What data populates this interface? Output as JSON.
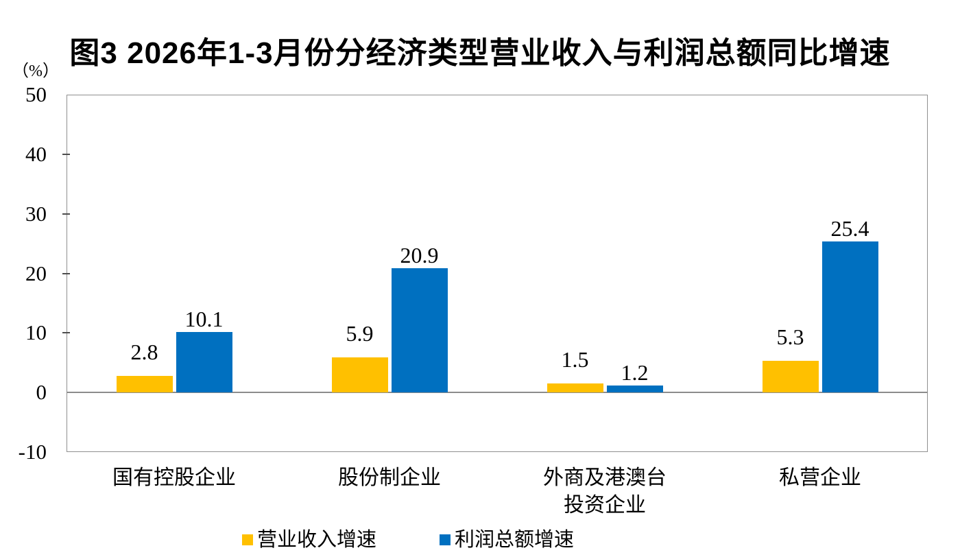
{
  "title": "图3  2026年1-3月份分经济类型营业收入与利润总额同比增速",
  "unit_label": "（%）",
  "colors": {
    "revenue_series": "#FFC000",
    "profit_series": "#0070C0",
    "plot_border": "#8f8f8f",
    "zero_axis": "#8c8c8c",
    "tick_mark": "#4d4d4d",
    "text": "#000000"
  },
  "chart_data": {
    "type": "bar",
    "title": "图3  2026年1-3月份分经济类型营业收入与利润总额同比增速",
    "ylabel": "（%）",
    "categories": [
      "国有控股企业",
      "股份制企业",
      "外商及港澳台投资企业",
      "私营企业"
    ],
    "category_lines": [
      [
        "国有控股企业"
      ],
      [
        "股份制企业"
      ],
      [
        "外商及港澳台",
        "投资企业"
      ],
      [
        "私营企业"
      ]
    ],
    "series": [
      {
        "name": "营业收入增速",
        "color": "#FFC000",
        "values": [
          2.8,
          5.9,
          1.5,
          5.3
        ]
      },
      {
        "name": "利润总额增速",
        "color": "#0070C0",
        "values": [
          10.1,
          20.9,
          1.2,
          25.4
        ]
      }
    ],
    "data_labels": [
      [
        "2.8",
        "5.9",
        "1.5",
        "5.3"
      ],
      [
        "10.1",
        "20.9",
        "1.2",
        "25.4"
      ]
    ],
    "ylim": [
      -10,
      50
    ],
    "yticks": [
      50,
      40,
      30,
      20,
      10,
      0,
      -10
    ],
    "grid": false,
    "legend_position": "bottom"
  }
}
